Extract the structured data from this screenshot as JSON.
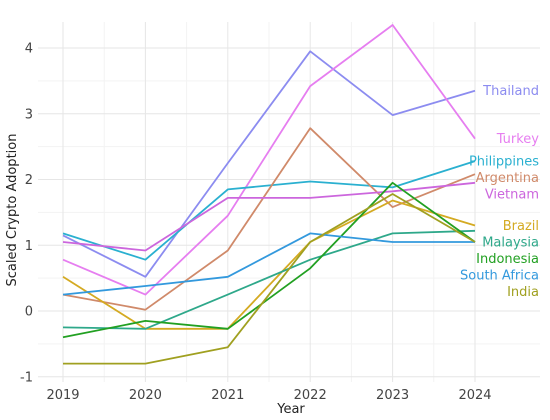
{
  "chart_data": {
    "type": "line",
    "xlabel": "Year",
    "ylabel": "Scaled Crypto Adoption",
    "x": [
      2019,
      2020,
      2021,
      2022,
      2023,
      2024
    ],
    "x_ticks": [
      "2019",
      "2020",
      "2021",
      "2022",
      "2023",
      "2024"
    ],
    "ylim": [
      -1.05,
      4.35
    ],
    "y_ticks": [
      -1,
      0,
      1,
      2,
      3,
      4
    ],
    "grid": true,
    "legend": "direct labels at right end of each line",
    "series": [
      {
        "name": "Thailand",
        "color": "#8c8cf0",
        "values": [
          1.15,
          0.52,
          2.25,
          3.95,
          2.98,
          3.35
        ]
      },
      {
        "name": "Turkey",
        "color": "#e67ef0",
        "values": [
          0.78,
          0.25,
          1.45,
          3.42,
          4.35,
          2.62
        ]
      },
      {
        "name": "Philippines",
        "color": "#2ab0d0",
        "values": [
          1.18,
          0.78,
          1.85,
          1.97,
          1.88,
          2.28
        ]
      },
      {
        "name": "Argentina",
        "color": "#d08a6a",
        "values": [
          0.25,
          0.02,
          0.92,
          2.78,
          1.58,
          2.08
        ]
      },
      {
        "name": "Vietnam",
        "color": "#cc66dd",
        "values": [
          1.05,
          0.92,
          1.72,
          1.72,
          1.82,
          1.95
        ]
      },
      {
        "name": "Brazil",
        "color": "#d4aa22",
        "values": [
          0.52,
          -0.27,
          -0.27,
          1.05,
          1.68,
          1.3
        ]
      },
      {
        "name": "Malaysia",
        "color": "#2ea88a",
        "values": [
          -0.25,
          -0.27,
          0.25,
          0.78,
          1.18,
          1.22
        ]
      },
      {
        "name": "Indonesia",
        "color": "#22a022",
        "values": [
          -0.4,
          -0.15,
          -0.27,
          0.65,
          1.95,
          1.05
        ]
      },
      {
        "name": "South Africa",
        "color": "#3399dd",
        "values": [
          0.25,
          0.38,
          0.52,
          1.18,
          1.05,
          1.05
        ]
      },
      {
        "name": "India",
        "color": "#a0a020",
        "values": [
          -0.8,
          -0.8,
          -0.55,
          1.05,
          1.78,
          1.05
        ]
      }
    ]
  }
}
